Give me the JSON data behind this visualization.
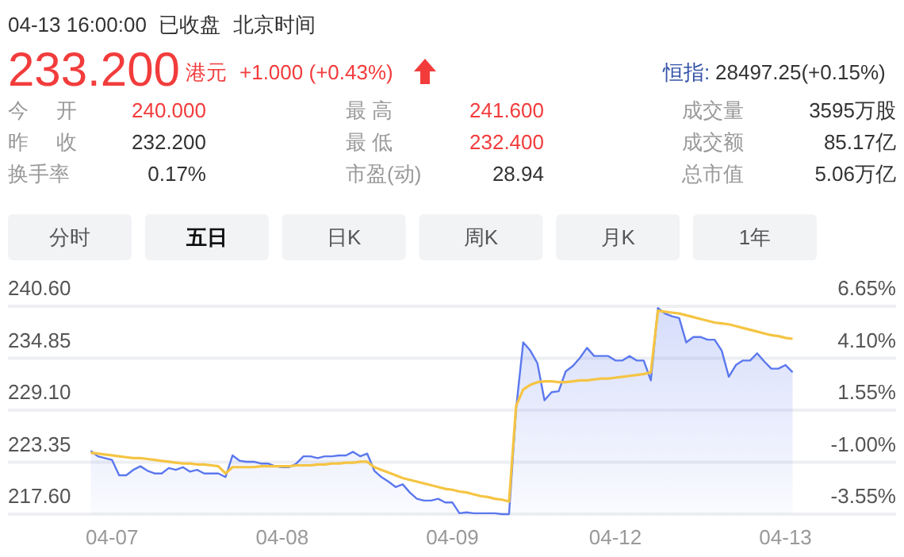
{
  "chart_data": [
    {
      "type": "other",
      "annotations": [
        "04-13 16:00:00",
        "已收盘",
        "北京时间",
        "233.200",
        "港元",
        "+1.000 (+0.43%)",
        "恒指:",
        "28497.25(+0.15%)",
        "今 开",
        "240.000",
        "最 高",
        "241.600",
        "成交量",
        "3595万股",
        "昨 收",
        "232.200",
        "最 低",
        "232.400",
        "成交额",
        "85.17亿",
        "换手率",
        "0.17%",
        "市盈(动)",
        "28.94",
        "总市值",
        "5.06万亿",
        "分时",
        "五日",
        "日K",
        "周K",
        "月K",
        "1年"
      ]
    },
    {
      "type": "area",
      "categories": [
        null,
        null,
        null,
        "04-07",
        null,
        null,
        null,
        null,
        null,
        null,
        null,
        null,
        null,
        null,
        null,
        null,
        null,
        null,
        null,
        null,
        null,
        null,
        null,
        null,
        null,
        null,
        null,
        "04-08",
        null,
        null,
        null,
        null,
        null,
        null,
        null,
        null,
        null,
        null,
        null,
        null,
        null,
        null,
        null,
        null,
        null,
        null,
        null,
        null,
        null,
        null,
        null,
        "04-09",
        null,
        null,
        null,
        null,
        null,
        null,
        null,
        null,
        null,
        null,
        null,
        null,
        null,
        null,
        null,
        null,
        null,
        null,
        null,
        null,
        null,
        null,
        "04-12",
        null,
        null,
        null,
        null,
        null,
        null,
        null,
        null,
        null,
        null,
        null,
        null,
        null,
        null,
        null,
        null,
        null,
        null,
        null,
        null,
        null,
        null,
        null,
        "04-13",
        null
      ],
      "ylim": [
        217.6,
        240.6
      ],
      "yticks": [
        {
          "value": 217.6,
          "label": "217.60"
        },
        {
          "value": 223.35,
          "label": "223.35"
        },
        {
          "value": 229.1,
          "label": "229.10"
        },
        {
          "value": 234.85,
          "label": "234.85"
        },
        {
          "value": 240.6,
          "label": "240.60"
        }
      ],
      "y2lim": [
        -3.55,
        6.65
      ],
      "y2ticks": [
        {
          "value": -3.55,
          "label": "-3.55%"
        },
        {
          "value": -1,
          "label": "-1.00%"
        },
        {
          "value": 1.55,
          "label": "1.55%"
        },
        {
          "value": 4.1,
          "label": "4.10%"
        },
        {
          "value": 6.65,
          "label": "6.65%"
        }
      ],
      "grid": "y",
      "series": [
        {
          "type": "area",
          "color": "#5b78ee",
          "values": [
            224.6,
            224.0,
            223.8,
            223.6,
            221.9,
            221.9,
            222.5,
            222.9,
            222.4,
            222.1,
            222.1,
            222.7,
            222.5,
            222.8,
            222.3,
            222.5,
            222.1,
            222.1,
            222.1,
            221.7,
            224.1,
            223.5,
            223.4,
            223.4,
            223.2,
            223.2,
            222.9,
            222.8,
            222.8,
            223.2,
            224.0,
            224.0,
            223.8,
            224.0,
            224.0,
            224.1,
            224.1,
            224.5,
            224.0,
            224.3,
            222.4,
            221.7,
            221.2,
            220.6,
            220.9,
            220.0,
            219.3,
            219.1,
            219.1,
            219.3,
            218.9,
            218.9,
            217.7,
            217.8,
            217.7,
            217.7,
            217.7,
            217.7,
            217.6,
            217.6,
            229.3,
            236.6,
            235.7,
            234.3,
            230.2,
            231.1,
            231.2,
            233.4,
            234.0,
            234.9,
            236.0,
            235.1,
            235.1,
            235.1,
            234.6,
            234.6,
            235.1,
            234.6,
            234.6,
            232.4,
            240.4,
            239.8,
            239.5,
            239.3,
            236.6,
            237.2,
            237.2,
            236.9,
            236.9,
            235.7,
            232.8,
            234.1,
            234.6,
            234.6,
            235.4,
            234.5,
            233.7,
            233.7,
            234.1,
            233.3
          ]
        },
        {
          "type": "line",
          "color": "#f5c443",
          "values": [
            224.4,
            224.3,
            224.2,
            224.1,
            224.0,
            223.9,
            223.8,
            223.8,
            223.7,
            223.6,
            223.5,
            223.4,
            223.3,
            223.2,
            223.2,
            223.1,
            223.1,
            223.0,
            222.9,
            222.1,
            222.8,
            222.8,
            222.8,
            222.8,
            222.9,
            222.9,
            222.9,
            222.9,
            222.9,
            223.0,
            223.0,
            223.0,
            223.1,
            223.1,
            223.2,
            223.2,
            223.3,
            223.3,
            223.4,
            223.4,
            222.8,
            222.5,
            222.2,
            221.9,
            221.6,
            221.4,
            221.2,
            221.0,
            220.8,
            220.6,
            220.4,
            220.3,
            220.1,
            220.0,
            219.8,
            219.6,
            219.5,
            219.3,
            219.2,
            219.0,
            229.6,
            231.4,
            231.9,
            232.2,
            232.3,
            232.3,
            232.2,
            232.2,
            232.3,
            232.4,
            232.4,
            232.5,
            232.6,
            232.6,
            232.7,
            232.8,
            232.9,
            233.0,
            233.1,
            233.3,
            240.1,
            240.0,
            239.9,
            239.8,
            239.6,
            239.4,
            239.2,
            239.0,
            238.8,
            238.7,
            238.6,
            238.4,
            238.2,
            238.0,
            237.8,
            237.6,
            237.4,
            237.3,
            237.1,
            237.0
          ]
        }
      ]
    }
  ]
}
